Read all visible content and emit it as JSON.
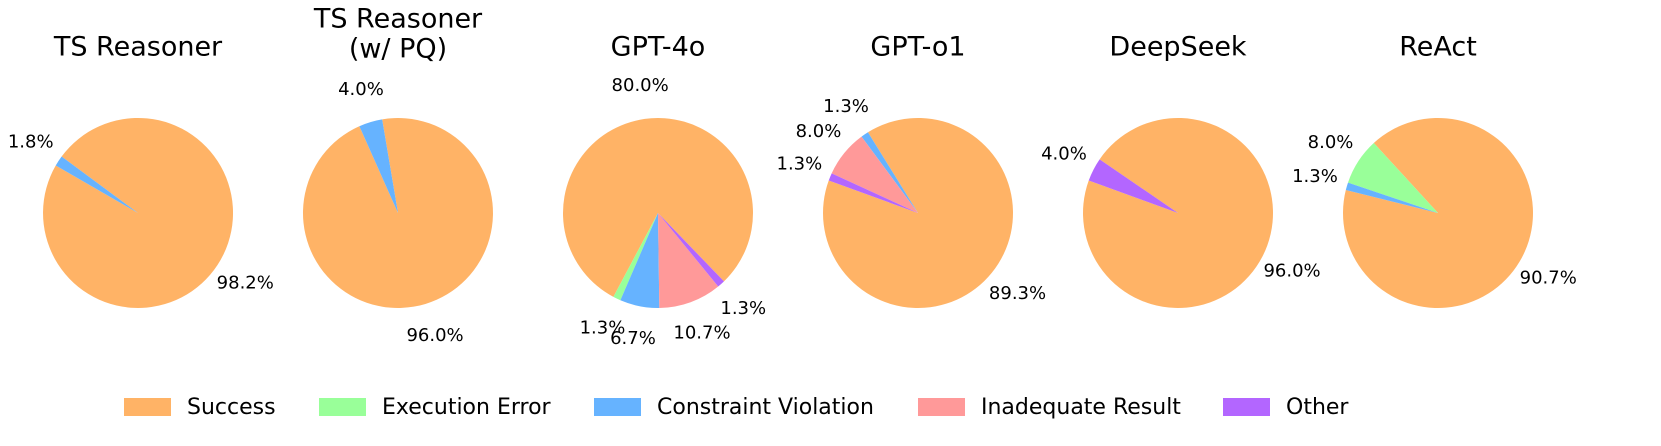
{
  "chart_data": {
    "type": "pie",
    "colors": {
      "Success": "#FFB366",
      "Execution Error": "#99FF99",
      "Constraint Violation": "#66B3FF",
      "Inadequate Result": "#FF9999",
      "Other": "#B366FF"
    },
    "legend": {
      "placement": "bottom",
      "entries": [
        "Success",
        "Execution Error",
        "Constraint Violation",
        "Inadequate Result",
        "Other"
      ]
    },
    "charts": [
      {
        "title_lines": [
          "TS Reasoner"
        ],
        "slices": [
          {
            "category": "Success",
            "value": 98.2,
            "label": "98.2%"
          },
          {
            "category": "Constraint Violation",
            "value": 1.8,
            "label": "1.8%"
          }
        ]
      },
      {
        "title_lines": [
          "TS Reasoner",
          "(w/ PQ)"
        ],
        "slices": [
          {
            "category": "Success",
            "value": 96.0,
            "label": "96.0%"
          },
          {
            "category": "Constraint Violation",
            "value": 4.0,
            "label": "4.0%"
          }
        ]
      },
      {
        "title_lines": [
          "GPT-4o"
        ],
        "slices": [
          {
            "category": "Success",
            "value": 80.0,
            "label": "80.0%"
          },
          {
            "category": "Execution Error",
            "value": 1.3,
            "label": "1.3%"
          },
          {
            "category": "Constraint Violation",
            "value": 6.7,
            "label": "6.7%"
          },
          {
            "category": "Inadequate Result",
            "value": 10.7,
            "label": "10.7%"
          },
          {
            "category": "Other",
            "value": 1.3,
            "label": "1.3%"
          }
        ]
      },
      {
        "title_lines": [
          "GPT-o1"
        ],
        "slices": [
          {
            "category": "Success",
            "value": 89.3,
            "label": "89.3%"
          },
          {
            "category": "Constraint Violation",
            "value": 1.3,
            "label": "1.3%"
          },
          {
            "category": "Inadequate Result",
            "value": 8.0,
            "label": "8.0%"
          },
          {
            "category": "Other",
            "value": 1.3,
            "label": "1.3%"
          }
        ]
      },
      {
        "title_lines": [
          "DeepSeek"
        ],
        "slices": [
          {
            "category": "Success",
            "value": 96.0,
            "label": "96.0%"
          },
          {
            "category": "Other",
            "value": 4.0,
            "label": "4.0%"
          }
        ]
      },
      {
        "title_lines": [
          "ReAct"
        ],
        "slices": [
          {
            "category": "Success",
            "value": 90.7,
            "label": "90.7%"
          },
          {
            "category": "Execution Error",
            "value": 8.0,
            "label": "8.0%"
          },
          {
            "category": "Constraint Violation",
            "value": 1.3,
            "label": "1.3%"
          }
        ]
      }
    ]
  }
}
